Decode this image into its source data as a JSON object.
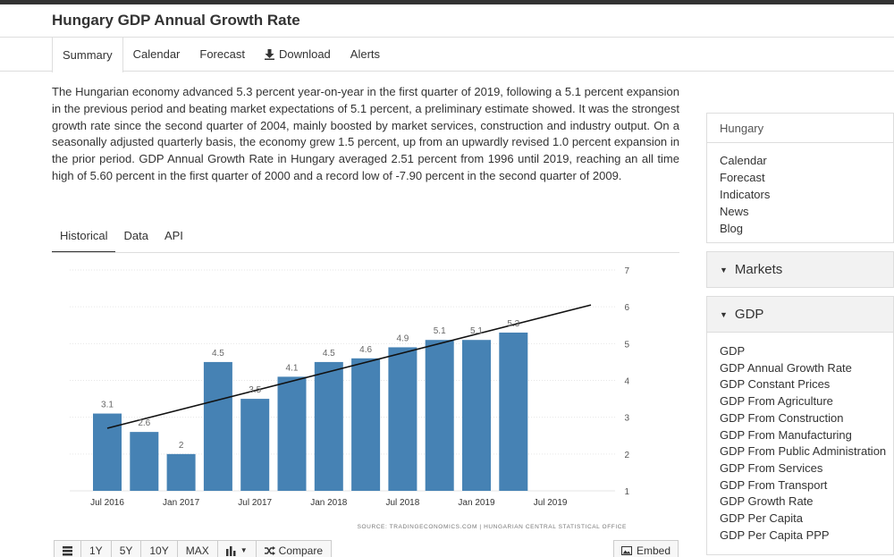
{
  "page": {
    "title": "Hungary GDP Annual Growth Rate"
  },
  "tabs": [
    {
      "label": "Summary"
    },
    {
      "label": "Calendar"
    },
    {
      "label": "Forecast"
    },
    {
      "label": "Download",
      "icon": "download-icon"
    },
    {
      "label": "Alerts"
    }
  ],
  "description": "The Hungarian economy advanced 5.3 percent year-on-year in the first quarter of 2019, following a 5.1 percent expansion in the previous period and beating market expectations of 5.1 percent, a preliminary estimate showed. It was the strongest growth rate since the second quarter of 2004, mainly boosted by market services, construction and industry output. On a seasonally adjusted quarterly basis, the economy grew 1.5 percent, up from an upwardly revised 1.0 percent expansion in the prior period. GDP Annual Growth Rate in Hungary averaged 2.51 percent from 1996 until 2019, reaching an all time high of 5.60 percent in the first quarter of 2000 and a record low of -7.90 percent in the second quarter of 2009.",
  "subtabs": [
    "Historical",
    "Data",
    "API"
  ],
  "chart_data": {
    "type": "bar",
    "categories": [
      "2016 Q2",
      "2016 Q3",
      "2016 Q4",
      "2017 Q1",
      "2017 Q2",
      "2017 Q3",
      "2017 Q4",
      "2018 Q1",
      "2018 Q2",
      "2018 Q3",
      "2018 Q4",
      "2019 Q1"
    ],
    "values": [
      3.1,
      2.6,
      2,
      4.5,
      3.5,
      4.1,
      4.5,
      4.6,
      4.9,
      5.1,
      5.1,
      5.3
    ],
    "value_labels": [
      "3.1",
      "2.6",
      "2",
      "4.5",
      "3.5",
      "4.1",
      "4.5",
      "4.6",
      "4.9",
      "5.1",
      "5.1",
      "5.3"
    ],
    "x_tick_labels": [
      "Jul 2016",
      "Jan 2017",
      "Jul 2017",
      "Jan 2018",
      "Jul 2018",
      "Jan 2019",
      "Jul 2019"
    ],
    "y_ticks": [
      1,
      2,
      3,
      4,
      5,
      6,
      7
    ],
    "ylim": [
      1,
      7
    ],
    "trendline": {
      "start": 2.7,
      "end": 6.05
    },
    "bar_color": "#4682b4",
    "source": "SOURCE: TRADINGECONOMICS.COM  |  HUNGARIAN CENTRAL STATISTICAL OFFICE"
  },
  "toolbar": {
    "buttons": [
      "1Y",
      "5Y",
      "10Y",
      "MAX"
    ],
    "compare_label": "Compare",
    "embed_label": "Embed"
  },
  "sidebar": {
    "country": "Hungary",
    "links": [
      "Calendar",
      "Forecast",
      "Indicators",
      "News",
      "Blog"
    ],
    "markets_label": "Markets",
    "gdp_label": "GDP",
    "gdp_items": [
      "GDP",
      "GDP Annual Growth Rate",
      "GDP Constant Prices",
      "GDP From Agriculture",
      "GDP From Construction",
      "GDP From Manufacturing",
      "GDP From Public Administration",
      "GDP From Services",
      "GDP From Transport",
      "GDP Growth Rate",
      "GDP Per Capita",
      "GDP Per Capita PPP"
    ]
  }
}
